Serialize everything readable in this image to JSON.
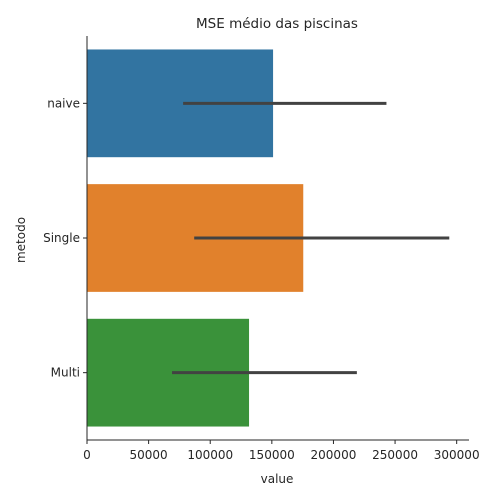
{
  "chart_data": {
    "type": "bar",
    "orientation": "horizontal",
    "title": "MSE médio das piscinas",
    "xlabel": "value",
    "ylabel": "metodo",
    "categories": [
      "naive",
      "Single",
      "Multi"
    ],
    "values": [
      151000,
      175500,
      131500
    ],
    "error_bars": [
      [
        78000,
        243000
      ],
      [
        87000,
        294000
      ],
      [
        69000,
        219000
      ]
    ],
    "xlim": [
      0,
      310000
    ],
    "xticks": [
      0,
      50000,
      100000,
      150000,
      200000,
      250000,
      300000
    ],
    "colors": [
      "#3274a1",
      "#e1812c",
      "#3a923a"
    ],
    "error_bar_color": "#424242",
    "grid": false,
    "legend": "none"
  }
}
